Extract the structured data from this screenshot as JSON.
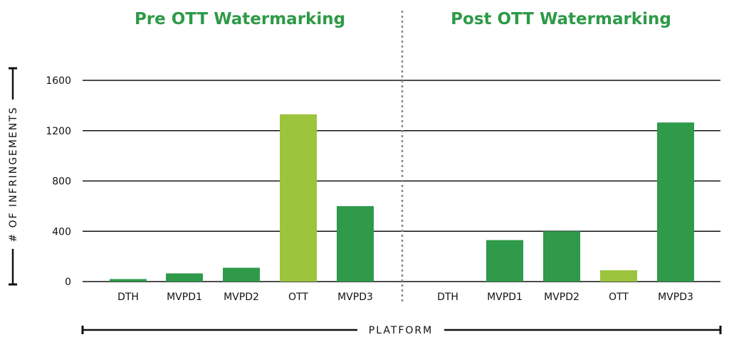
{
  "chart_data": [
    {
      "type": "bar",
      "title": "Pre OTT Watermarking",
      "categories": [
        "DTH",
        "MVPD1",
        "MVPD2",
        "OTT",
        "MVPD3"
      ],
      "values": [
        20,
        65,
        110,
        1330,
        600
      ],
      "ylim": [
        0,
        1600
      ],
      "yticks": [
        0,
        400,
        800,
        1200,
        1600
      ],
      "grid": true
    },
    {
      "type": "bar",
      "title": "Post OTT Watermarking",
      "categories": [
        "DTH",
        "MVPD1",
        "MVPD2",
        "OTT",
        "MVPD3"
      ],
      "values": [
        0,
        330,
        400,
        90,
        1265
      ],
      "ylim": [
        0,
        1600
      ],
      "yticks": [
        0,
        400,
        800,
        1200,
        1600
      ],
      "grid": true
    }
  ],
  "ylabel": "# OF INFRINGEMENTS",
  "xlabel": "PLATFORM",
  "colors": {
    "title": "#2e9a47",
    "bar": "#2e9a4a",
    "bar_highlight": "#9cc43c",
    "grid": "#111111",
    "divider": "#888888"
  },
  "highlight_category": "OTT"
}
